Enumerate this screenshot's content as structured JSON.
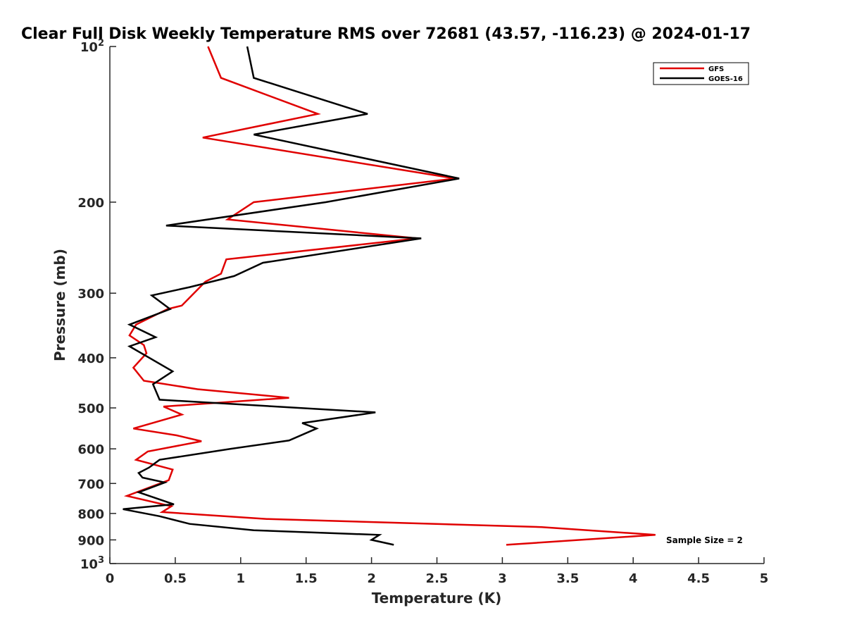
{
  "chart_data": {
    "type": "line",
    "title": "Clear Full Disk Weekly Temperature RMS over 72681 (43.57, -116.23) @ 2024-01-17",
    "xlabel": "Temperature (K)",
    "ylabel": "Pressure (mb)",
    "xlim": [
      0,
      5
    ],
    "ylim": [
      100,
      1000
    ],
    "y_scale": "log",
    "y_reversed": true,
    "grid": false,
    "legend_position": "top-right",
    "x_ticks": [
      "0",
      "0.5",
      "1",
      "1.5",
      "2",
      "2.5",
      "3",
      "3.5",
      "4",
      "4.5",
      "5"
    ],
    "y_ticks": [
      {
        "value": 100,
        "label": "10",
        "sup": "2"
      },
      {
        "value": 200,
        "label": "200",
        "sup": ""
      },
      {
        "value": 300,
        "label": "300",
        "sup": ""
      },
      {
        "value": 400,
        "label": "400",
        "sup": ""
      },
      {
        "value": 500,
        "label": "500",
        "sup": ""
      },
      {
        "value": 600,
        "label": "600",
        "sup": ""
      },
      {
        "value": 700,
        "label": "700",
        "sup": ""
      },
      {
        "value": 800,
        "label": "800",
        "sup": ""
      },
      {
        "value": 900,
        "label": "900",
        "sup": ""
      },
      {
        "value": 1000,
        "label": "10",
        "sup": "3"
      }
    ],
    "annotation": "Sample Size = 2",
    "series": [
      {
        "name": "GFS",
        "color": "#e00000",
        "points": [
          [
            0.75,
            100
          ],
          [
            0.85,
            115
          ],
          [
            1.59,
            135
          ],
          [
            0.71,
            150
          ],
          [
            2.64,
            180
          ],
          [
            1.1,
            200
          ],
          [
            0.9,
            216
          ],
          [
            2.35,
            235
          ],
          [
            0.89,
            258
          ],
          [
            0.85,
            275
          ],
          [
            0.73,
            285
          ],
          [
            0.55,
            317
          ],
          [
            0.44,
            322
          ],
          [
            0.2,
            345
          ],
          [
            0.15,
            362
          ],
          [
            0.26,
            378
          ],
          [
            0.28,
            392
          ],
          [
            0.18,
            418
          ],
          [
            0.26,
            443
          ],
          [
            0.67,
            460
          ],
          [
            1.37,
            478
          ],
          [
            0.41,
            497
          ],
          [
            0.55,
            515
          ],
          [
            0.18,
            548
          ],
          [
            0.51,
            565
          ],
          [
            0.7,
            580
          ],
          [
            0.29,
            607
          ],
          [
            0.2,
            630
          ],
          [
            0.48,
            658
          ],
          [
            0.45,
            690
          ],
          [
            0.13,
            740
          ],
          [
            0.47,
            775
          ],
          [
            0.4,
            795
          ],
          [
            1.2,
            820
          ],
          [
            3.3,
            850
          ],
          [
            4.17,
            880
          ],
          [
            3.03,
            920
          ]
        ]
      },
      {
        "name": "GOES-16",
        "color": "#000000",
        "points": [
          [
            1.05,
            100
          ],
          [
            1.1,
            115
          ],
          [
            1.97,
            135
          ],
          [
            1.1,
            148
          ],
          [
            2.67,
            180
          ],
          [
            1.65,
            200
          ],
          [
            0.43,
            222
          ],
          [
            2.38,
            235
          ],
          [
            1.17,
            262
          ],
          [
            0.95,
            278
          ],
          [
            0.61,
            292
          ],
          [
            0.32,
            303
          ],
          [
            0.46,
            322
          ],
          [
            0.15,
            345
          ],
          [
            0.35,
            365
          ],
          [
            0.15,
            380
          ],
          [
            0.48,
            425
          ],
          [
            0.33,
            450
          ],
          [
            0.38,
            482
          ],
          [
            2.03,
            510
          ],
          [
            1.47,
            535
          ],
          [
            1.58,
            548
          ],
          [
            1.37,
            578
          ],
          [
            0.92,
            600
          ],
          [
            0.38,
            630
          ],
          [
            0.3,
            652
          ],
          [
            0.22,
            668
          ],
          [
            0.25,
            682
          ],
          [
            0.42,
            697
          ],
          [
            0.22,
            728
          ],
          [
            0.49,
            768
          ],
          [
            0.1,
            785
          ],
          [
            0.38,
            810
          ],
          [
            0.61,
            838
          ],
          [
            1.1,
            862
          ],
          [
            2.06,
            880
          ],
          [
            2.0,
            900
          ],
          [
            2.17,
            920
          ]
        ]
      }
    ]
  }
}
